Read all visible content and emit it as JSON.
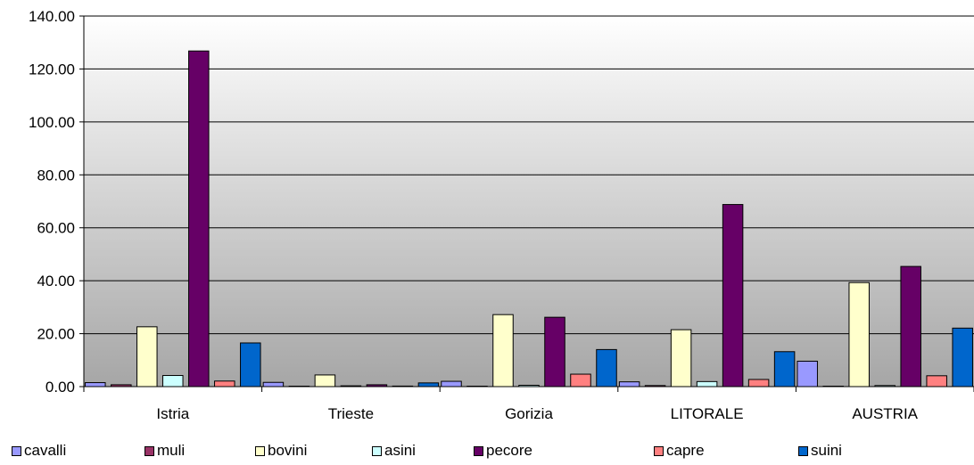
{
  "chart_data": {
    "type": "bar",
    "categories": [
      "Istria",
      "Trieste",
      "Gorizia",
      "LITORALE",
      "AUSTRIA"
    ],
    "y_ticks": [
      "0.00",
      "20.00",
      "40.00",
      "60.00",
      "80.00",
      "100.00",
      "120.00",
      "140.00"
    ],
    "ylim": [
      0,
      140
    ],
    "grid": true,
    "legend_position": "bottom",
    "series": [
      {
        "name": "cavalli",
        "color": "#9999ff",
        "values": [
          1.5,
          1.6,
          2.0,
          1.8,
          9.6
        ]
      },
      {
        "name": "muli",
        "color": "#993366",
        "values": [
          0.7,
          0.1,
          0.1,
          0.4,
          0.1
        ]
      },
      {
        "name": "bovini",
        "color": "#ffffcc",
        "values": [
          22.6,
          4.4,
          27.2,
          21.5,
          39.3
        ]
      },
      {
        "name": "asini",
        "color": "#ccffff",
        "values": [
          4.2,
          0.3,
          0.5,
          1.9,
          0.4
        ]
      },
      {
        "name": "pecore",
        "color": "#660066",
        "values": [
          126.8,
          0.7,
          26.2,
          68.8,
          45.4
        ]
      },
      {
        "name": "capre",
        "color": "#ff8080",
        "values": [
          2.1,
          0.2,
          4.7,
          2.7,
          4.1
        ]
      },
      {
        "name": "suini",
        "color": "#0066cc",
        "values": [
          16.5,
          1.4,
          14.0,
          13.2,
          22.1
        ]
      }
    ]
  }
}
